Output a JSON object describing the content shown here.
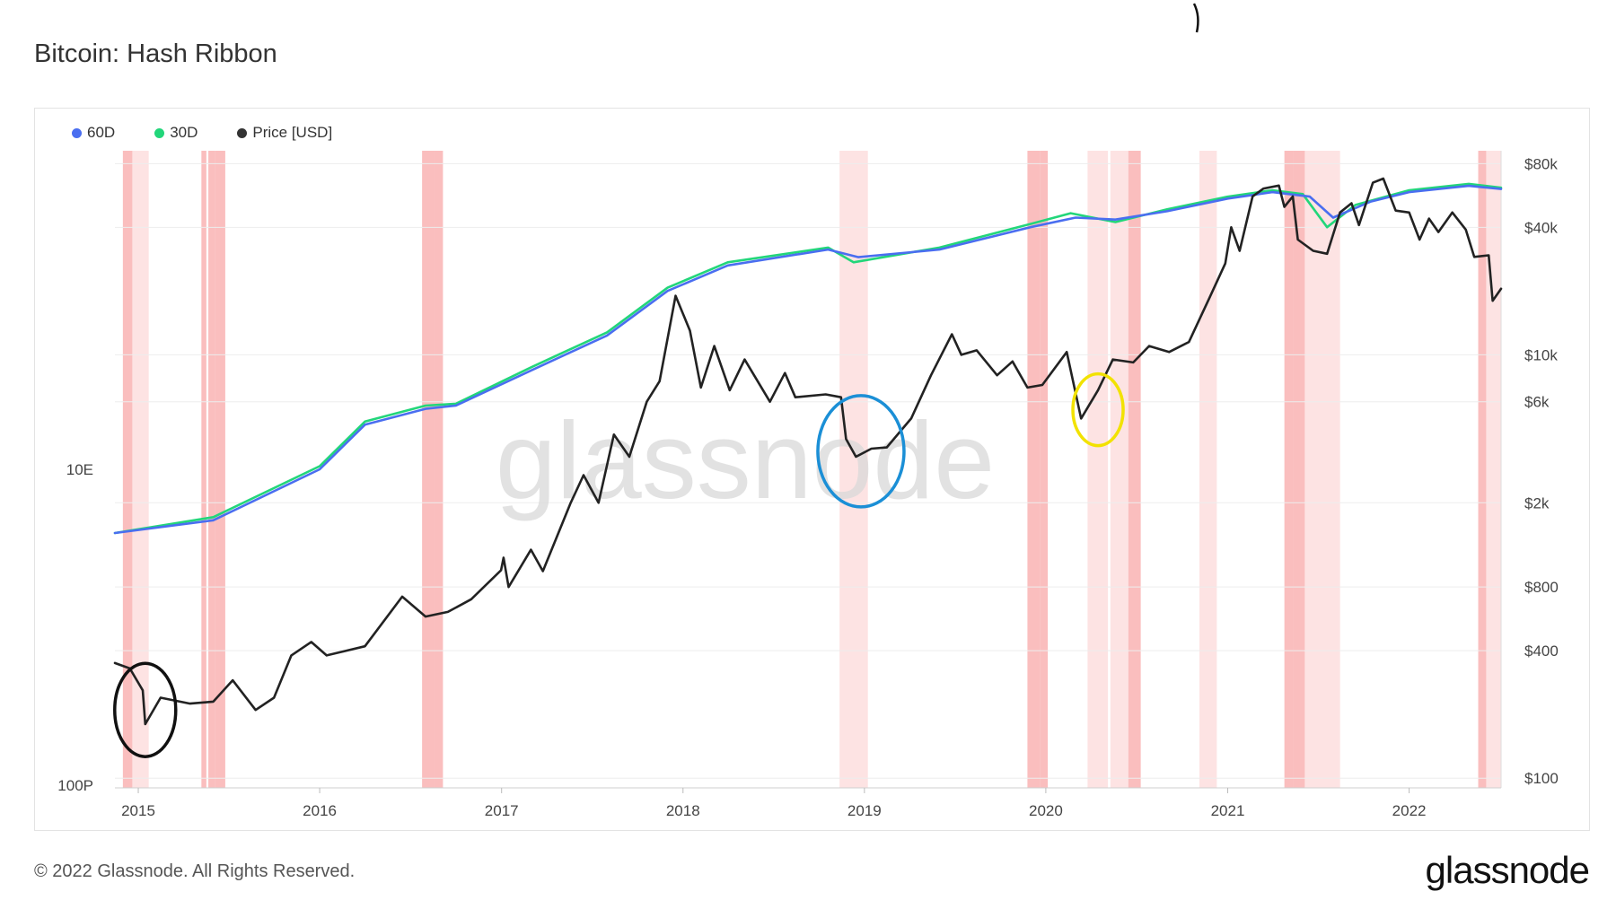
{
  "title": "Bitcoin: Hash Ribbon",
  "footer": {
    "copyright": "© 2022 Glassnode. All Rights Reserved.",
    "brand": "glassnode",
    "watermark": "glassnode"
  },
  "chart_data": {
    "type": "line",
    "title": "Bitcoin: Hash Ribbon",
    "x_range": [
      "2014-11-15",
      "2022-07-05"
    ],
    "x_ticks": [
      "2015",
      "2016",
      "2017",
      "2018",
      "2019",
      "2020",
      "2021",
      "2022"
    ],
    "left_axis": {
      "scale": "log",
      "tick_labels": [
        "10E",
        "100P"
      ]
    },
    "right_axis": {
      "scale": "log",
      "unit": "USD",
      "tick_values": [
        100,
        400,
        800,
        2000,
        6000,
        10000,
        40000,
        80000
      ],
      "tick_labels": [
        "$100",
        "$400",
        "$800",
        "$2k",
        "$6k",
        "$10k",
        "$40k",
        "$80k"
      ]
    },
    "legend_placement": "top-left",
    "series": [
      {
        "name": "60D",
        "color": "#4a6ef0",
        "axis": "left",
        "points": [
          [
            "2014-11-15",
            0.4
          ],
          [
            "2015-06-01",
            0.42
          ],
          [
            "2016-01-01",
            0.5
          ],
          [
            "2016-04-01",
            0.57
          ],
          [
            "2016-08-01",
            0.595
          ],
          [
            "2016-10-01",
            0.6
          ],
          [
            "2017-03-01",
            0.655
          ],
          [
            "2017-08-01",
            0.71
          ],
          [
            "2017-12-01",
            0.78
          ],
          [
            "2018-04-01",
            0.82
          ],
          [
            "2018-10-20",
            0.845
          ],
          [
            "2018-12-20",
            0.833
          ],
          [
            "2019-06-01",
            0.845
          ],
          [
            "2019-12-01",
            0.88
          ],
          [
            "2020-03-01",
            0.895
          ],
          [
            "2020-05-20",
            0.892
          ],
          [
            "2020-09-01",
            0.905
          ],
          [
            "2021-01-01",
            0.925
          ],
          [
            "2021-04-01",
            0.935
          ],
          [
            "2021-06-15",
            0.928
          ],
          [
            "2021-08-01",
            0.895
          ],
          [
            "2021-10-15",
            0.92
          ],
          [
            "2022-01-01",
            0.935
          ],
          [
            "2022-05-01",
            0.945
          ],
          [
            "2022-07-05",
            0.94
          ]
        ]
      },
      {
        "name": "30D",
        "color": "#22d67a",
        "axis": "left",
        "points": [
          [
            "2014-11-15",
            0.4
          ],
          [
            "2015-06-01",
            0.425
          ],
          [
            "2016-01-01",
            0.505
          ],
          [
            "2016-04-01",
            0.575
          ],
          [
            "2016-08-01",
            0.6
          ],
          [
            "2016-10-01",
            0.603
          ],
          [
            "2017-03-01",
            0.66
          ],
          [
            "2017-08-01",
            0.715
          ],
          [
            "2017-12-01",
            0.785
          ],
          [
            "2018-04-01",
            0.825
          ],
          [
            "2018-10-20",
            0.848
          ],
          [
            "2018-12-10",
            0.825
          ],
          [
            "2019-06-01",
            0.848
          ],
          [
            "2019-12-01",
            0.885
          ],
          [
            "2020-02-20",
            0.902
          ],
          [
            "2020-05-20",
            0.888
          ],
          [
            "2020-09-01",
            0.908
          ],
          [
            "2021-01-01",
            0.928
          ],
          [
            "2021-04-01",
            0.938
          ],
          [
            "2021-06-01",
            0.932
          ],
          [
            "2021-07-20",
            0.88
          ],
          [
            "2021-09-15",
            0.915
          ],
          [
            "2022-01-01",
            0.938
          ],
          [
            "2022-05-01",
            0.948
          ],
          [
            "2022-07-05",
            0.942
          ]
        ]
      },
      {
        "name": "Price [USD]",
        "color": "#222222",
        "axis": "right",
        "points": [
          [
            "2014-11-15",
            350
          ],
          [
            "2014-12-15",
            330
          ],
          [
            "2015-01-10",
            260
          ],
          [
            "2015-01-15",
            180
          ],
          [
            "2015-02-15",
            240
          ],
          [
            "2015-04-15",
            225
          ],
          [
            "2015-06-01",
            230
          ],
          [
            "2015-07-10",
            290
          ],
          [
            "2015-08-25",
            210
          ],
          [
            "2015-10-01",
            240
          ],
          [
            "2015-11-05",
            380
          ],
          [
            "2015-12-15",
            440
          ],
          [
            "2016-01-15",
            380
          ],
          [
            "2016-04-01",
            420
          ],
          [
            "2016-06-15",
            720
          ],
          [
            "2016-08-01",
            580
          ],
          [
            "2016-09-15",
            610
          ],
          [
            "2016-11-01",
            700
          ],
          [
            "2016-12-31",
            960
          ],
          [
            "2017-01-05",
            1100
          ],
          [
            "2017-01-15",
            800
          ],
          [
            "2017-03-01",
            1200
          ],
          [
            "2017-03-25",
            950
          ],
          [
            "2017-05-20",
            2000
          ],
          [
            "2017-06-15",
            2700
          ],
          [
            "2017-07-15",
            2000
          ],
          [
            "2017-08-15",
            4200
          ],
          [
            "2017-09-15",
            3300
          ],
          [
            "2017-10-20",
            6000
          ],
          [
            "2017-11-15",
            7500
          ],
          [
            "2017-12-17",
            19000
          ],
          [
            "2018-01-15",
            13000
          ],
          [
            "2018-02-06",
            7000
          ],
          [
            "2018-03-05",
            11000
          ],
          [
            "2018-04-05",
            6800
          ],
          [
            "2018-05-05",
            9500
          ],
          [
            "2018-06-25",
            6000
          ],
          [
            "2018-07-25",
            8200
          ],
          [
            "2018-08-15",
            6300
          ],
          [
            "2018-10-15",
            6500
          ],
          [
            "2018-11-15",
            6300
          ],
          [
            "2018-11-25",
            4000
          ],
          [
            "2018-12-15",
            3300
          ],
          [
            "2019-01-15",
            3600
          ],
          [
            "2019-02-15",
            3650
          ],
          [
            "2019-04-05",
            5000
          ],
          [
            "2019-05-15",
            8000
          ],
          [
            "2019-06-26",
            12500
          ],
          [
            "2019-07-15",
            10000
          ],
          [
            "2019-08-15",
            10500
          ],
          [
            "2019-09-25",
            8000
          ],
          [
            "2019-10-26",
            9300
          ],
          [
            "2019-11-25",
            7000
          ],
          [
            "2019-12-25",
            7200
          ],
          [
            "2020-02-12",
            10300
          ],
          [
            "2020-03-12",
            5000
          ],
          [
            "2020-04-15",
            6800
          ],
          [
            "2020-05-15",
            9500
          ],
          [
            "2020-06-25",
            9200
          ],
          [
            "2020-07-27",
            11000
          ],
          [
            "2020-09-05",
            10300
          ],
          [
            "2020-10-15",
            11500
          ],
          [
            "2020-11-25",
            18500
          ],
          [
            "2020-12-27",
            27000
          ],
          [
            "2021-01-08",
            40000
          ],
          [
            "2021-01-25",
            31000
          ],
          [
            "2021-02-20",
            56000
          ],
          [
            "2021-03-14",
            61000
          ],
          [
            "2021-04-14",
            63000
          ],
          [
            "2021-04-25",
            50000
          ],
          [
            "2021-05-12",
            56000
          ],
          [
            "2021-05-22",
            35000
          ],
          [
            "2021-06-22",
            31000
          ],
          [
            "2021-07-20",
            30000
          ],
          [
            "2021-08-15",
            47000
          ],
          [
            "2021-09-07",
            52000
          ],
          [
            "2021-09-22",
            41000
          ],
          [
            "2021-10-20",
            65000
          ],
          [
            "2021-11-10",
            68000
          ],
          [
            "2021-12-05",
            48000
          ],
          [
            "2022-01-01",
            47000
          ],
          [
            "2022-01-22",
            35000
          ],
          [
            "2022-02-10",
            44000
          ],
          [
            "2022-03-01",
            38000
          ],
          [
            "2022-03-29",
            47000
          ],
          [
            "2022-04-25",
            39000
          ],
          [
            "2022-05-12",
            29000
          ],
          [
            "2022-06-10",
            29500
          ],
          [
            "2022-06-18",
            18000
          ],
          [
            "2022-07-05",
            20500
          ]
        ]
      }
    ],
    "capitulation_bands": [
      [
        "2014-12-01",
        "2014-12-20"
      ],
      [
        "2014-12-20",
        "2015-01-22"
      ],
      [
        "2015-05-08",
        "2015-05-18"
      ],
      [
        "2015-05-22",
        "2015-06-05"
      ],
      [
        "2015-06-05",
        "2015-06-25"
      ],
      [
        "2016-07-25",
        "2016-08-20"
      ],
      [
        "2016-08-20",
        "2016-09-05"
      ],
      [
        "2018-11-12",
        "2019-01-08"
      ],
      [
        "2019-11-25",
        "2019-12-20"
      ],
      [
        "2019-12-20",
        "2020-01-05"
      ],
      [
        "2020-03-25",
        "2020-05-05"
      ],
      [
        "2020-05-10",
        "2020-06-15"
      ],
      [
        "2020-06-15",
        "2020-07-10"
      ],
      [
        "2020-11-05",
        "2020-12-10"
      ],
      [
        "2021-04-25",
        "2021-05-12"
      ],
      [
        "2021-05-12",
        "2021-06-05"
      ],
      [
        "2021-06-05",
        "2021-08-15"
      ],
      [
        "2022-05-20",
        "2022-06-05"
      ],
      [
        "2022-06-05",
        "2022-07-05"
      ]
    ],
    "band_color": "#f8a8a8",
    "annotations": [
      {
        "shape": "ellipse",
        "color": "#111111",
        "date": "2015-01-15",
        "value": 210
      },
      {
        "shape": "ellipse",
        "color": "#1b8fd6",
        "date": "2018-12-25",
        "value": 3500
      },
      {
        "shape": "ellipse",
        "color": "#f2e200",
        "date": "2020-04-15",
        "value": 5500
      }
    ]
  }
}
